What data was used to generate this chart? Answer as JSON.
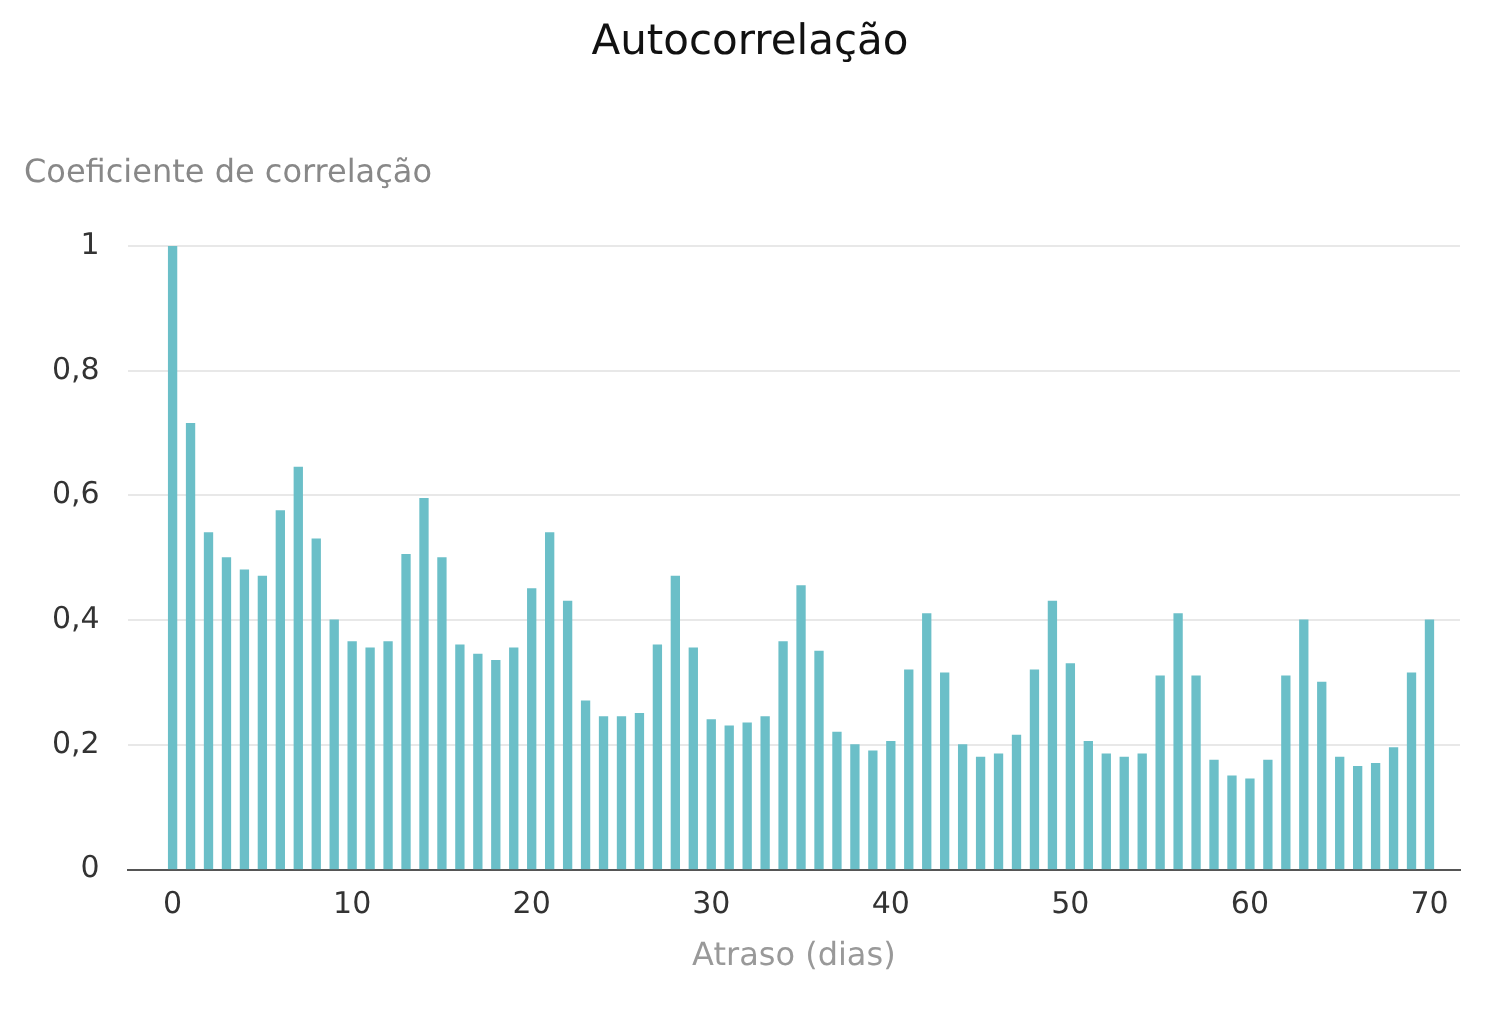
{
  "chart_data": {
    "type": "bar",
    "title": "Autocorrelação",
    "xlabel": "Atraso (dias)",
    "ylabel": "Coeficiente de correlação",
    "x": [
      0,
      1,
      2,
      3,
      4,
      5,
      6,
      7,
      8,
      9,
      10,
      11,
      12,
      13,
      14,
      15,
      16,
      17,
      18,
      19,
      20,
      21,
      22,
      23,
      24,
      25,
      26,
      27,
      28,
      29,
      30,
      31,
      32,
      33,
      34,
      35,
      36,
      37,
      38,
      39,
      40,
      41,
      42,
      43,
      44,
      45,
      46,
      47,
      48,
      49,
      50,
      51,
      52,
      53,
      54,
      55,
      56,
      57,
      58,
      59,
      60,
      61,
      62,
      63,
      64,
      65,
      66,
      67,
      68,
      69,
      70
    ],
    "values": [
      1.0,
      0.715,
      0.54,
      0.5,
      0.48,
      0.47,
      0.575,
      0.645,
      0.53,
      0.4,
      0.365,
      0.355,
      0.365,
      0.505,
      0.595,
      0.5,
      0.36,
      0.345,
      0.335,
      0.355,
      0.45,
      0.54,
      0.43,
      0.27,
      0.245,
      0.245,
      0.25,
      0.36,
      0.47,
      0.355,
      0.24,
      0.23,
      0.235,
      0.245,
      0.365,
      0.455,
      0.35,
      0.22,
      0.2,
      0.19,
      0.205,
      0.32,
      0.41,
      0.315,
      0.2,
      0.18,
      0.185,
      0.215,
      0.32,
      0.43,
      0.33,
      0.205,
      0.185,
      0.18,
      0.185,
      0.31,
      0.41,
      0.31,
      0.175,
      0.15,
      0.145,
      0.175,
      0.31,
      0.4,
      0.3,
      0.18,
      0.165,
      0.17,
      0.195,
      0.315,
      0.4
    ],
    "color": "#6bbfc8",
    "xlim": [
      -2.5,
      71.7
    ],
    "xticks": [
      0,
      10,
      20,
      30,
      40,
      50,
      60,
      70
    ],
    "ylim": [
      0,
      1
    ],
    "yticks": [
      0,
      {
        "value": 0.2,
        "label": "0,2"
      },
      {
        "value": 0.4,
        "label": "0,4"
      },
      {
        "value": 0.6,
        "label": "0,6"
      },
      {
        "value": 0.8,
        "label": "0,8"
      },
      1
    ],
    "grid": "y",
    "legend": false
  }
}
